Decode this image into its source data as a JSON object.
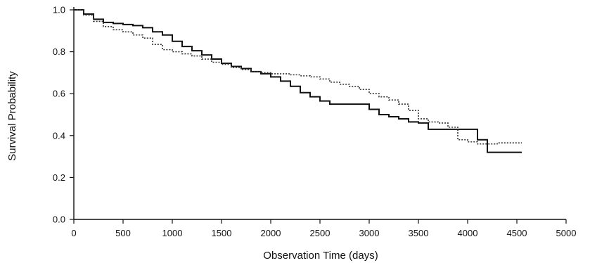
{
  "chart_data": {
    "type": "line",
    "title": "",
    "xlabel": "Observation Time (days)",
    "ylabel": "Survival Probability",
    "xlim": [
      0,
      5000
    ],
    "ylim": [
      0.0,
      1.0
    ],
    "x_ticks": [
      0,
      500,
      1000,
      1500,
      2000,
      2500,
      3000,
      3500,
      4000,
      4500,
      5000
    ],
    "x_tick_labels": [
      "0",
      "500",
      "1000",
      "1500",
      "2000",
      "2500",
      "3000",
      "3500",
      "4000",
      "4500",
      "5000"
    ],
    "y_ticks": [
      0.0,
      0.2,
      0.4,
      0.6,
      0.8,
      1.0
    ],
    "y_tick_labels": [
      "0.0",
      "0.2",
      "0.4",
      "0.6",
      "0.8",
      "1.0"
    ],
    "grid": false,
    "legend": "none",
    "series": [
      {
        "style": "solid",
        "color": "#111111",
        "x": [
          0,
          100,
          200,
          300,
          400,
          500,
          600,
          700,
          800,
          900,
          1000,
          1100,
          1200,
          1300,
          1400,
          1500,
          1600,
          1700,
          1800,
          1900,
          2000,
          2100,
          2200,
          2300,
          2400,
          2500,
          2600,
          2800,
          3000,
          3100,
          3200,
          3300,
          3400,
          3500,
          3600,
          3900,
          4000,
          4100,
          4200,
          4300,
          4400,
          4550
        ],
        "y": [
          1.0,
          0.98,
          0.955,
          0.94,
          0.935,
          0.93,
          0.925,
          0.915,
          0.895,
          0.88,
          0.85,
          0.825,
          0.805,
          0.785,
          0.765,
          0.745,
          0.73,
          0.72,
          0.705,
          0.695,
          0.68,
          0.66,
          0.635,
          0.605,
          0.585,
          0.565,
          0.55,
          0.55,
          0.525,
          0.5,
          0.49,
          0.48,
          0.465,
          0.46,
          0.43,
          0.43,
          0.43,
          0.38,
          0.32,
          0.32,
          0.32,
          0.32
        ]
      },
      {
        "style": "dotted",
        "color": "#333333",
        "x": [
          0,
          100,
          200,
          300,
          400,
          500,
          600,
          700,
          800,
          900,
          1000,
          1100,
          1200,
          1300,
          1400,
          1500,
          1600,
          1700,
          1800,
          1900,
          2000,
          2100,
          2200,
          2300,
          2400,
          2500,
          2600,
          2700,
          2800,
          2900,
          3000,
          3100,
          3200,
          3300,
          3400,
          3500,
          3600,
          3700,
          3800,
          3900,
          4000,
          4100,
          4200,
          4300,
          4550
        ],
        "y": [
          1.0,
          0.975,
          0.945,
          0.92,
          0.905,
          0.895,
          0.88,
          0.865,
          0.835,
          0.81,
          0.8,
          0.79,
          0.78,
          0.765,
          0.75,
          0.74,
          0.725,
          0.715,
          0.705,
          0.7,
          0.695,
          0.695,
          0.69,
          0.685,
          0.68,
          0.67,
          0.655,
          0.645,
          0.635,
          0.62,
          0.6,
          0.585,
          0.57,
          0.55,
          0.52,
          0.48,
          0.465,
          0.46,
          0.44,
          0.38,
          0.37,
          0.36,
          0.36,
          0.365,
          0.365
        ]
      }
    ]
  }
}
